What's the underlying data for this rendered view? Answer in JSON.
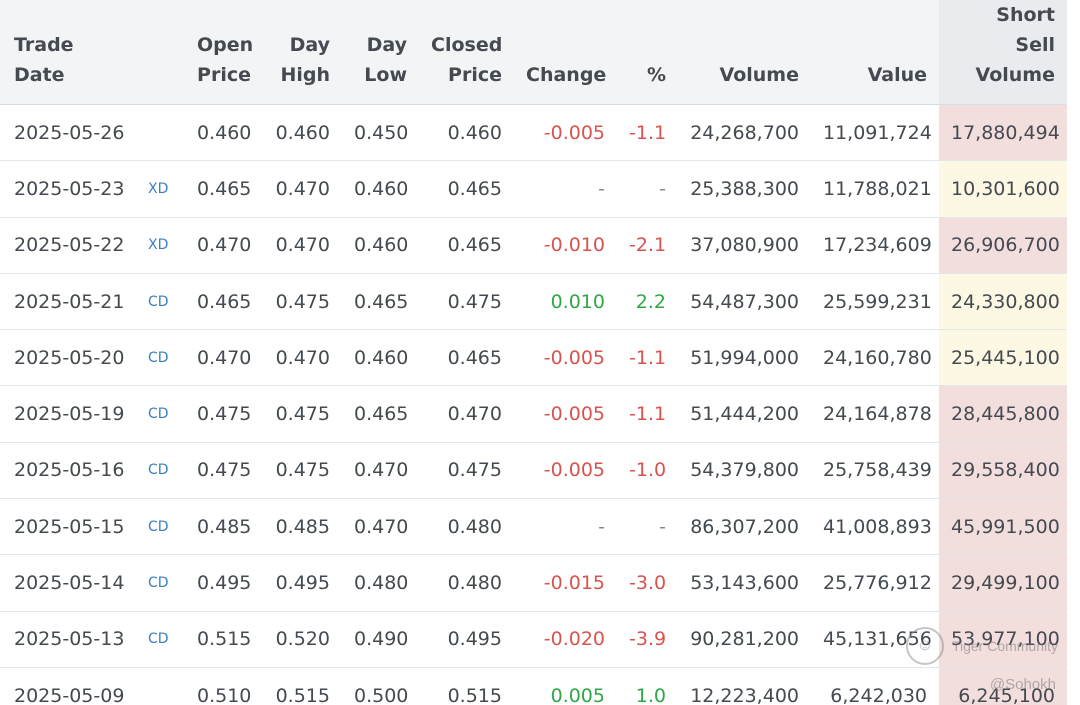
{
  "table": {
    "headers": {
      "trade_date": "Trade Date",
      "flag": "",
      "open_price": "Open Price",
      "day_high": "Day High",
      "day_low": "Day Low",
      "closed_price": "Closed Price",
      "change": "Change",
      "pct": "%",
      "volume": "Volume",
      "value": "Value",
      "short_sell_volume": "Short Sell Volume"
    },
    "rows": [
      {
        "date": "2025-05-26",
        "flag": "",
        "open": "0.460",
        "high": "0.460",
        "low": "0.450",
        "close": "0.460",
        "change": "-0.005",
        "pct": "-1.1",
        "volume": "24,268,700",
        "value": "11,091,724",
        "ssv": "17,880,494",
        "dir": "neg",
        "ssv_color": "red"
      },
      {
        "date": "2025-05-23",
        "flag": "XD",
        "open": "0.465",
        "high": "0.470",
        "low": "0.460",
        "close": "0.465",
        "change": "-",
        "pct": "-",
        "volume": "25,388,300",
        "value": "11,788,021",
        "ssv": "10,301,600",
        "dir": "dash",
        "ssv_color": "yellow"
      },
      {
        "date": "2025-05-22",
        "flag": "XD",
        "open": "0.470",
        "high": "0.470",
        "low": "0.460",
        "close": "0.465",
        "change": "-0.010",
        "pct": "-2.1",
        "volume": "37,080,900",
        "value": "17,234,609",
        "ssv": "26,906,700",
        "dir": "neg",
        "ssv_color": "red"
      },
      {
        "date": "2025-05-21",
        "flag": "CD",
        "open": "0.465",
        "high": "0.475",
        "low": "0.465",
        "close": "0.475",
        "change": "0.010",
        "pct": "2.2",
        "volume": "54,487,300",
        "value": "25,599,231",
        "ssv": "24,330,800",
        "dir": "pos",
        "ssv_color": "yellow"
      },
      {
        "date": "2025-05-20",
        "flag": "CD",
        "open": "0.470",
        "high": "0.470",
        "low": "0.460",
        "close": "0.465",
        "change": "-0.005",
        "pct": "-1.1",
        "volume": "51,994,000",
        "value": "24,160,780",
        "ssv": "25,445,100",
        "dir": "neg",
        "ssv_color": "yellow"
      },
      {
        "date": "2025-05-19",
        "flag": "CD",
        "open": "0.475",
        "high": "0.475",
        "low": "0.465",
        "close": "0.470",
        "change": "-0.005",
        "pct": "-1.1",
        "volume": "51,444,200",
        "value": "24,164,878",
        "ssv": "28,445,800",
        "dir": "neg",
        "ssv_color": "red"
      },
      {
        "date": "2025-05-16",
        "flag": "CD",
        "open": "0.475",
        "high": "0.475",
        "low": "0.470",
        "close": "0.475",
        "change": "-0.005",
        "pct": "-1.0",
        "volume": "54,379,800",
        "value": "25,758,439",
        "ssv": "29,558,400",
        "dir": "neg",
        "ssv_color": "red"
      },
      {
        "date": "2025-05-15",
        "flag": "CD",
        "open": "0.485",
        "high": "0.485",
        "low": "0.470",
        "close": "0.480",
        "change": "-",
        "pct": "-",
        "volume": "86,307,200",
        "value": "41,008,893",
        "ssv": "45,991,500",
        "dir": "dash",
        "ssv_color": "red"
      },
      {
        "date": "2025-05-14",
        "flag": "CD",
        "open": "0.495",
        "high": "0.495",
        "low": "0.480",
        "close": "0.480",
        "change": "-0.015",
        "pct": "-3.0",
        "volume": "53,143,600",
        "value": "25,776,912",
        "ssv": "29,499,100",
        "dir": "neg",
        "ssv_color": "red"
      },
      {
        "date": "2025-05-13",
        "flag": "CD",
        "open": "0.515",
        "high": "0.520",
        "low": "0.490",
        "close": "0.495",
        "change": "-0.020",
        "pct": "-3.9",
        "volume": "90,281,200",
        "value": "45,131,656",
        "ssv": "53,977,100",
        "dir": "neg",
        "ssv_color": "red"
      },
      {
        "date": "2025-05-09",
        "flag": "",
        "open": "0.510",
        "high": "0.515",
        "low": "0.500",
        "close": "0.515",
        "change": "0.005",
        "pct": "1.0",
        "volume": "12,223,400",
        "value": "6,242,030",
        "ssv": "6,245,100",
        "dir": "pos",
        "ssv_color": "red"
      }
    ]
  },
  "colors": {
    "negative": "#d9534f",
    "positive": "#2fa846",
    "ssv_red": "#f3dede",
    "ssv_yellow": "#fcf8e3",
    "flag": "#3a7fc2"
  },
  "watermark": {
    "brand": "Tiger Community",
    "icon": "tiger-logo-icon",
    "handle": "@Sohokh"
  }
}
